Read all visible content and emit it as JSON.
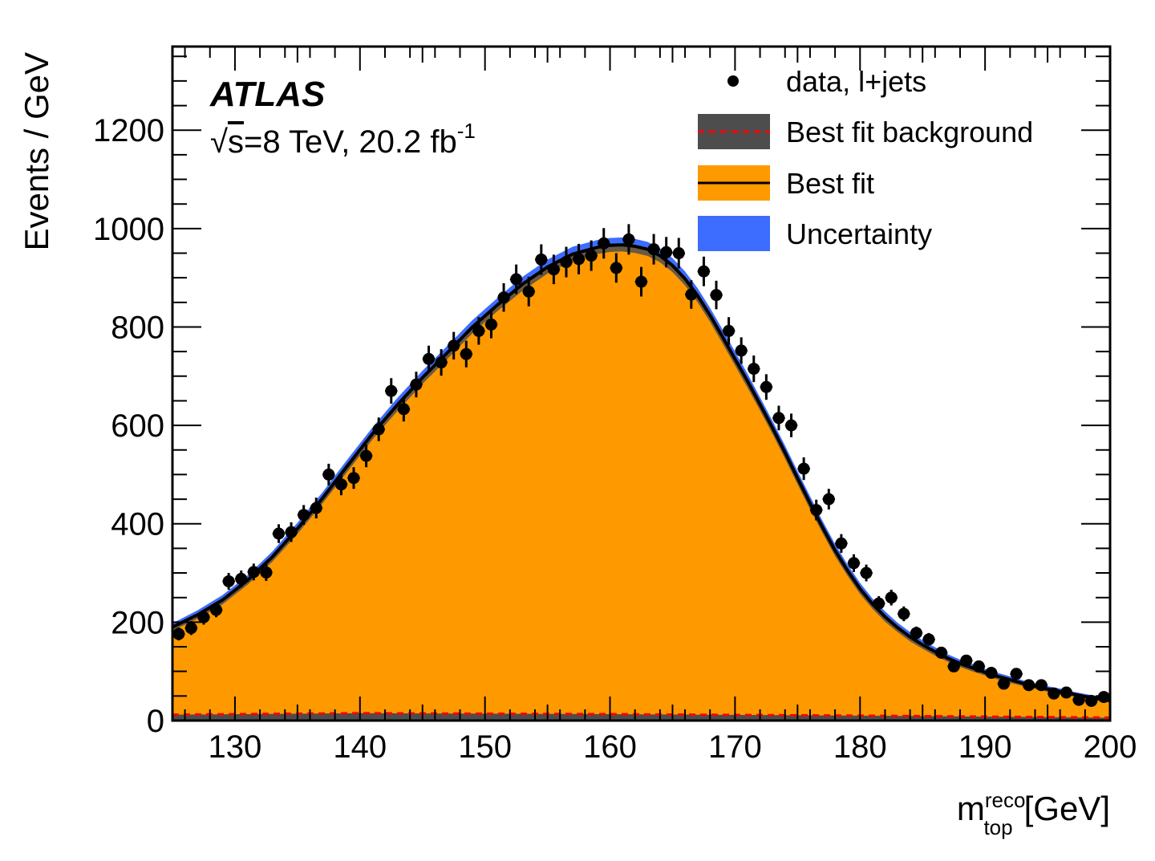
{
  "chart_data": {
    "type": "histogram",
    "experiment": "ATLAS",
    "energy_label": {
      "sqrt": "√",
      "s": "s",
      "rest": "=8 TeV, 20.2 fb",
      "sup": "-1"
    },
    "xlabel": {
      "main": "m",
      "sup": "reco",
      "sub": "top",
      "unit": "[GeV]"
    },
    "ylabel": "Events / GeV",
    "xlim": [
      125,
      200
    ],
    "ylim": [
      0,
      1370
    ],
    "x_ticks": [
      130,
      140,
      150,
      160,
      170,
      180,
      190,
      200
    ],
    "y_ticks": [
      0,
      200,
      400,
      600,
      800,
      1000,
      1200
    ],
    "legend": {
      "placement": "top-right",
      "entries": [
        "data, l+jets",
        "Best fit background",
        "Best fit",
        "Uncertainty"
      ]
    },
    "colors": {
      "signal": "#ff9900",
      "background": "#4d4d4d",
      "uncertainty": "#3d6dff",
      "fit_line": "#000000",
      "background_line": "#ff0000",
      "data": "#000000"
    },
    "bin_width": 1,
    "data": {
      "x": [
        125.5,
        126.5,
        127.5,
        128.5,
        129.5,
        130.5,
        131.5,
        132.5,
        133.5,
        134.5,
        135.5,
        136.5,
        137.5,
        138.5,
        139.5,
        140.5,
        141.5,
        142.5,
        143.5,
        144.5,
        145.5,
        146.5,
        147.5,
        148.5,
        149.5,
        150.5,
        151.5,
        152.5,
        153.5,
        154.5,
        155.5,
        156.5,
        157.5,
        158.5,
        159.5,
        160.5,
        161.5,
        162.5,
        163.5,
        164.5,
        165.5,
        166.5,
        167.5,
        168.5,
        169.5,
        170.5,
        171.5,
        172.5,
        173.5,
        174.5,
        175.5,
        176.5,
        177.5,
        178.5,
        179.5,
        180.5,
        181.5,
        182.5,
        183.5,
        184.5,
        185.5,
        186.5,
        187.5,
        188.5,
        189.5,
        190.5,
        191.5,
        192.5,
        193.5,
        194.5,
        195.5,
        196.5,
        197.5,
        198.5,
        199.5
      ],
      "y": [
        176,
        188,
        210,
        225,
        283,
        288,
        302,
        301,
        380,
        383,
        418,
        432,
        500,
        480,
        493,
        538,
        592,
        670,
        633,
        683,
        735,
        728,
        762,
        745,
        792,
        805,
        860,
        897,
        872,
        937,
        917,
        932,
        938,
        945,
        970,
        920,
        978,
        892,
        958,
        952,
        950,
        866,
        913,
        865,
        792,
        752,
        715,
        678,
        615,
        600,
        512,
        428,
        450,
        360,
        320,
        300,
        238,
        250,
        217,
        178,
        165,
        138,
        110,
        122,
        110,
        97,
        75,
        95,
        72,
        72,
        55,
        57,
        42,
        40,
        48
      ],
      "err": [
        13,
        14,
        15,
        15,
        17,
        17,
        17,
        17,
        19,
        20,
        20,
        21,
        22,
        22,
        22,
        23,
        24,
        26,
        25,
        26,
        27,
        27,
        28,
        27,
        28,
        28,
        29,
        30,
        30,
        31,
        30,
        31,
        31,
        31,
        31,
        30,
        31,
        30,
        31,
        31,
        31,
        29,
        30,
        29,
        28,
        27,
        27,
        26,
        25,
        24,
        23,
        21,
        21,
        19,
        18,
        17,
        15,
        16,
        15,
        13,
        13,
        12,
        11,
        11,
        10,
        10,
        9,
        10,
        8,
        8,
        7,
        8,
        6,
        6,
        7
      ]
    },
    "best_fit": {
      "x": [
        125,
        127,
        129,
        131,
        133,
        135,
        137,
        139,
        141,
        143,
        145,
        147,
        149,
        151,
        153,
        155,
        157,
        159,
        160,
        161,
        162,
        163,
        164,
        165,
        166,
        167,
        168,
        169,
        170,
        171,
        172,
        173,
        174,
        175,
        176,
        177,
        178,
        179,
        180,
        181,
        182,
        183,
        184,
        185,
        186,
        187,
        188,
        189,
        190,
        191,
        192,
        193,
        194,
        195,
        196,
        197,
        198,
        199,
        200
      ],
      "y": [
        190,
        215,
        245,
        285,
        333,
        390,
        452,
        518,
        583,
        642,
        697,
        748,
        800,
        845,
        887,
        922,
        948,
        962,
        966,
        967,
        964,
        958,
        945,
        925,
        898,
        864,
        824,
        780,
        735,
        690,
        643,
        595,
        545,
        493,
        442,
        393,
        346,
        305,
        268,
        237,
        211,
        189,
        170,
        154,
        140,
        127,
        116,
        107,
        98,
        90,
        83,
        76,
        70,
        64,
        59,
        54,
        49,
        45,
        41
      ]
    },
    "uncertainty_halfwidth": [
      8,
      9,
      10,
      10,
      11,
      12,
      12,
      13,
      13,
      14,
      14,
      14,
      14,
      14,
      15,
      15,
      15,
      15,
      15,
      15,
      15,
      15,
      15,
      15,
      15,
      15,
      15,
      15,
      15,
      15,
      14,
      14,
      14,
      14,
      14,
      13,
      13,
      12,
      12,
      11,
      11,
      10,
      10,
      9,
      9,
      8,
      8,
      8,
      7,
      7,
      7,
      6,
      6,
      6,
      6,
      5,
      5,
      5,
      5
    ],
    "background": {
      "x": [
        125,
        140,
        160,
        180,
        200
      ],
      "y": [
        12,
        15,
        13,
        10,
        6
      ]
    }
  }
}
